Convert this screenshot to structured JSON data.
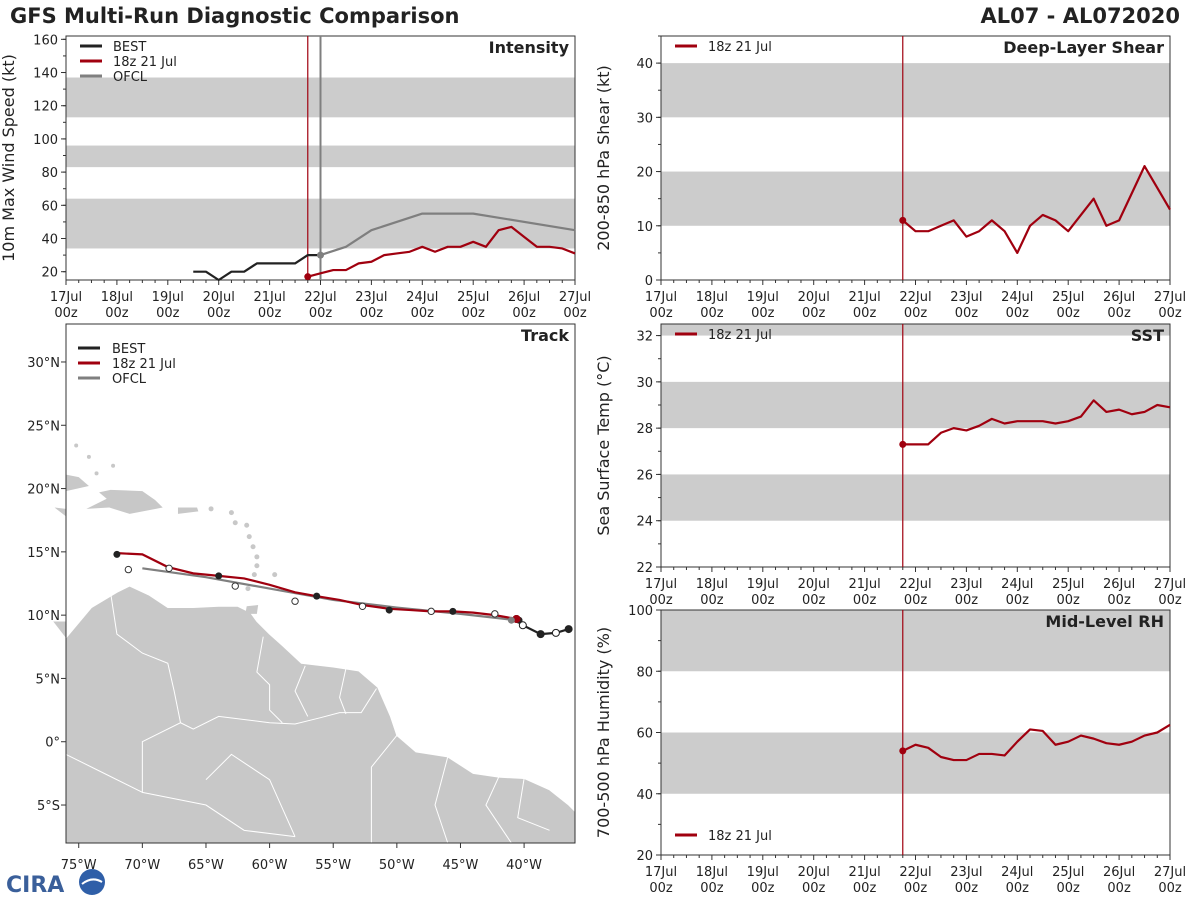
{
  "header": {
    "title": "GFS Multi-Run Diagnostic Comparison",
    "storm_id": "AL07 - AL072020"
  },
  "logo": {
    "text": "CIRA"
  },
  "colors": {
    "best": "#222222",
    "run": "#a0000f",
    "ofcl": "#7f7f7f",
    "band": "#cccccc",
    "land": "#c8c8c8"
  },
  "time_axis": {
    "ticks": [
      "17Jul",
      "18Jul",
      "19Jul",
      "20Jul",
      "21Jul",
      "22Jul",
      "23Jul",
      "24Jul",
      "25Jul",
      "26Jul",
      "27Jul"
    ],
    "sub": "00z",
    "run_time_days": 4.75,
    "ofcl_time_days": 5.0
  },
  "chart_data": [
    {
      "type": "line",
      "id": "intensity",
      "title": "Intensity",
      "ylabel": "10m Max Wind Speed (kt)",
      "xlabel": "",
      "ylim": [
        15,
        162
      ],
      "yticks": [
        20,
        40,
        60,
        80,
        100,
        120,
        140,
        160
      ],
      "bands": [
        [
          34,
          64
        ],
        [
          83,
          96
        ],
        [
          113,
          137
        ]
      ],
      "legend": [
        "BEST",
        "18z 21 Jul",
        "OFCL"
      ],
      "series": [
        {
          "name": "BEST",
          "x": [
            2.5,
            2.75,
            3.0,
            3.25,
            3.5,
            3.75,
            4.0,
            4.25,
            4.5,
            4.75,
            5.0
          ],
          "values": [
            20,
            20,
            15,
            20,
            20,
            25,
            25,
            25,
            25,
            30,
            30
          ]
        },
        {
          "name": "18z 21 Jul",
          "x": [
            4.75,
            5.0,
            5.25,
            5.5,
            5.75,
            6.0,
            6.25,
            6.5,
            6.75,
            7.0,
            7.25,
            7.5,
            7.75,
            8.0,
            8.25,
            8.5,
            8.75,
            9.0,
            9.25,
            9.5,
            9.75,
            10.0
          ],
          "values": [
            17,
            19,
            21,
            21,
            25,
            26,
            30,
            31,
            32,
            35,
            32,
            35,
            35,
            38,
            35,
            45,
            47,
            41,
            35,
            35,
            34,
            31
          ]
        },
        {
          "name": "OFCL",
          "x": [
            5.0,
            5.5,
            6.0,
            7.0,
            8.0,
            10.0
          ],
          "values": [
            30,
            35,
            45,
            55,
            55,
            45
          ]
        }
      ]
    },
    {
      "type": "line",
      "id": "shear",
      "title": "Deep-Layer Shear",
      "ylabel": "200-850 hPa Shear (kt)",
      "xlabel": "",
      "ylim": [
        0,
        45
      ],
      "yticks": [
        0,
        10,
        20,
        30,
        40
      ],
      "bands": [
        [
          10,
          20
        ],
        [
          30,
          40
        ]
      ],
      "legend": [
        "18z 21 Jul"
      ],
      "series": [
        {
          "name": "18z 21 Jul",
          "x": [
            4.75,
            5.0,
            5.25,
            5.5,
            5.75,
            6.0,
            6.25,
            6.5,
            6.75,
            7.0,
            7.25,
            7.5,
            7.75,
            8.0,
            8.25,
            8.5,
            8.75,
            9.0,
            9.25,
            9.5,
            9.75,
            10.0
          ],
          "values": [
            11,
            9,
            9,
            10,
            11,
            8,
            9,
            11,
            9,
            5,
            10,
            12,
            11,
            9,
            12,
            15,
            10,
            11,
            16,
            21,
            17,
            13
          ]
        }
      ]
    },
    {
      "type": "line",
      "id": "sst",
      "title": "SST",
      "ylabel": "Sea Surface Temp (°C)",
      "xlabel": "",
      "ylim": [
        22,
        32.5
      ],
      "yticks": [
        22,
        24,
        26,
        28,
        30,
        32
      ],
      "bands": [
        [
          24,
          26
        ],
        [
          28,
          30
        ],
        [
          32,
          32.5
        ]
      ],
      "legend": [
        "18z 21 Jul"
      ],
      "series": [
        {
          "name": "18z 21 Jul",
          "x": [
            4.75,
            5.0,
            5.25,
            5.5,
            5.75,
            6.0,
            6.25,
            6.5,
            6.75,
            7.0,
            7.25,
            7.5,
            7.75,
            8.0,
            8.25,
            8.5,
            8.75,
            9.0,
            9.25,
            9.5,
            9.75,
            10.0
          ],
          "values": [
            27.3,
            27.3,
            27.3,
            27.8,
            28.0,
            27.9,
            28.1,
            28.4,
            28.2,
            28.3,
            28.3,
            28.3,
            28.2,
            28.3,
            28.5,
            29.2,
            28.7,
            28.8,
            28.6,
            28.7,
            29.0,
            28.9
          ]
        }
      ]
    },
    {
      "type": "line",
      "id": "rh",
      "title": "Mid-Level RH",
      "ylabel": "700-500 hPa Humidity (%)",
      "xlabel": "",
      "ylim": [
        20,
        100
      ],
      "yticks": [
        20,
        40,
        60,
        80,
        100
      ],
      "bands": [
        [
          40,
          60
        ],
        [
          80,
          100
        ]
      ],
      "legend": [
        "18z 21 Jul"
      ],
      "series": [
        {
          "name": "18z 21 Jul",
          "x": [
            4.75,
            5.0,
            5.25,
            5.5,
            5.75,
            6.0,
            6.25,
            6.5,
            6.75,
            7.0,
            7.25,
            7.5,
            7.75,
            8.0,
            8.25,
            8.5,
            8.75,
            9.0,
            9.25,
            9.5,
            9.75,
            10.0
          ],
          "values": [
            54,
            56,
            55,
            52,
            51,
            51,
            53,
            53,
            52.5,
            57,
            61,
            60.5,
            56,
            57,
            59,
            58,
            56.5,
            56,
            57,
            59,
            60,
            62.5
          ]
        }
      ]
    },
    {
      "type": "scatter",
      "id": "track",
      "title": "Track",
      "xlabel": "Longitude",
      "ylabel": "Latitude",
      "xlim": [
        -76,
        -36
      ],
      "ylim": [
        -8,
        33
      ],
      "xticks": [
        -75,
        -70,
        -65,
        -60,
        -55,
        -50,
        -45,
        -40
      ],
      "xtick_labels": [
        "75°W",
        "70°W",
        "65°W",
        "60°W",
        "55°W",
        "50°W",
        "45°W",
        "40°W"
      ],
      "yticks": [
        -5,
        0,
        5,
        10,
        15,
        20,
        25,
        30
      ],
      "ytick_labels": [
        "5°S",
        "0°",
        "5°N",
        "10°N",
        "15°N",
        "20°N",
        "25°N",
        "30°N"
      ],
      "legend": [
        "BEST",
        "18z 21 Jul",
        "OFCL"
      ],
      "series": [
        {
          "name": "BEST",
          "lon": [
            -36.5,
            -37.5,
            -38.7,
            -40.1,
            -40.6
          ],
          "lat": [
            8.9,
            8.6,
            8.5,
            9.2,
            9.7
          ]
        },
        {
          "name": "18z 21 Jul",
          "lon": [
            -40.6,
            -42.3,
            -44.0,
            -45.6,
            -47.3,
            -48.9,
            -50.6,
            -52.7,
            -54.5,
            -56.3,
            -58.0,
            -60.0,
            -62.0,
            -64.0,
            -66.0,
            -68.0,
            -70.0,
            -72.0
          ],
          "lat": [
            9.7,
            10.0,
            10.2,
            10.3,
            10.3,
            10.4,
            10.5,
            10.8,
            11.2,
            11.5,
            11.8,
            12.4,
            12.9,
            13.1,
            13.3,
            13.8,
            14.8,
            14.9
          ],
          "markers_lon": [
            -40.4,
            -45.6,
            -50.6,
            -56.3,
            -64.0,
            -72.0
          ],
          "markers_lat": [
            9.6,
            10.3,
            10.4,
            11.5,
            13.1,
            14.8
          ]
        },
        {
          "name": "OFCL",
          "lon": [
            -40.6,
            -45.0,
            -50.0,
            -55.0,
            -60.0,
            -65.0,
            -70.0
          ],
          "lat": [
            9.6,
            10.1,
            10.6,
            11.2,
            12.1,
            13.0,
            13.7
          ],
          "markers_lon": [
            -42.3,
            -47.3,
            -52.7,
            -58.0,
            -62.7,
            -67.9,
            -71.1
          ],
          "markers_lat": [
            10.1,
            10.3,
            10.7,
            11.1,
            12.3,
            13.7,
            13.6
          ]
        }
      ]
    }
  ]
}
